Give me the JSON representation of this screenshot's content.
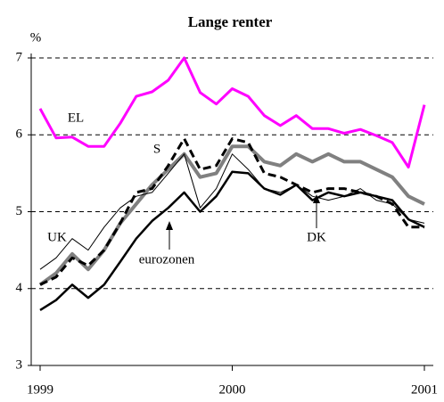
{
  "chart_data": {
    "type": "line",
    "title": "Lange renter",
    "y_label": "%",
    "x": [
      1999,
      1999.083,
      1999.167,
      1999.25,
      1999.333,
      1999.417,
      1999.5,
      1999.583,
      1999.667,
      1999.75,
      1999.833,
      1999.917,
      2000,
      2000.083,
      2000.167,
      2000.25,
      2000.333,
      2000.417,
      2000.5,
      2000.583,
      2000.667,
      2000.75,
      2000.833,
      2000.917,
      2001
    ],
    "xlim": [
      1999,
      2001
    ],
    "xticks": [
      1999,
      2000,
      2001
    ],
    "ylim": [
      3,
      7
    ],
    "yticks": [
      3,
      4,
      5,
      6,
      7
    ],
    "grid": true,
    "series": [
      {
        "name": "EL",
        "color": "#ff00ff",
        "width": 3,
        "dashed": false,
        "values": [
          6.34,
          5.96,
          5.97,
          5.85,
          5.85,
          6.15,
          6.5,
          6.56,
          6.71,
          7.0,
          6.55,
          6.4,
          6.6,
          6.5,
          6.25,
          6.12,
          6.25,
          6.08,
          6.08,
          6.02,
          6.07,
          5.99,
          5.9,
          5.58,
          6.39
        ]
      },
      {
        "name": "S",
        "color": "#808080",
        "width": 4,
        "dashed": false,
        "values": [
          4.05,
          4.2,
          4.45,
          4.25,
          4.5,
          4.85,
          5.1,
          5.35,
          5.55,
          5.75,
          5.45,
          5.5,
          5.85,
          5.85,
          5.65,
          5.6,
          5.75,
          5.65,
          5.75,
          5.65,
          5.65,
          5.55,
          5.45,
          5.2,
          5.1
        ]
      },
      {
        "name": "UK",
        "color": "#000000",
        "width": 1,
        "dashed": false,
        "values": [
          4.25,
          4.4,
          4.65,
          4.5,
          4.8,
          5.05,
          5.2,
          5.25,
          5.5,
          5.75,
          5.05,
          5.3,
          5.75,
          5.55,
          5.3,
          5.25,
          5.35,
          5.2,
          5.15,
          5.2,
          5.3,
          5.15,
          5.1,
          4.9,
          4.85
        ]
      },
      {
        "name": "DK",
        "color": "#000000",
        "width": 3,
        "dashed": true,
        "values": [
          4.05,
          4.15,
          4.4,
          4.3,
          4.5,
          4.85,
          5.25,
          5.3,
          5.6,
          5.95,
          5.55,
          5.6,
          5.95,
          5.9,
          5.5,
          5.45,
          5.35,
          5.25,
          5.3,
          5.3,
          5.25,
          5.2,
          5.1,
          4.8,
          4.8
        ]
      },
      {
        "name": "eurozonen",
        "color": "#000000",
        "width": 2.5,
        "dashed": false,
        "values": [
          3.72,
          3.85,
          4.05,
          3.88,
          4.05,
          4.35,
          4.65,
          4.88,
          5.05,
          5.25,
          5.0,
          5.2,
          5.52,
          5.5,
          5.3,
          5.22,
          5.35,
          5.15,
          5.25,
          5.2,
          5.25,
          5.2,
          5.15,
          4.9,
          4.8
        ]
      }
    ]
  }
}
